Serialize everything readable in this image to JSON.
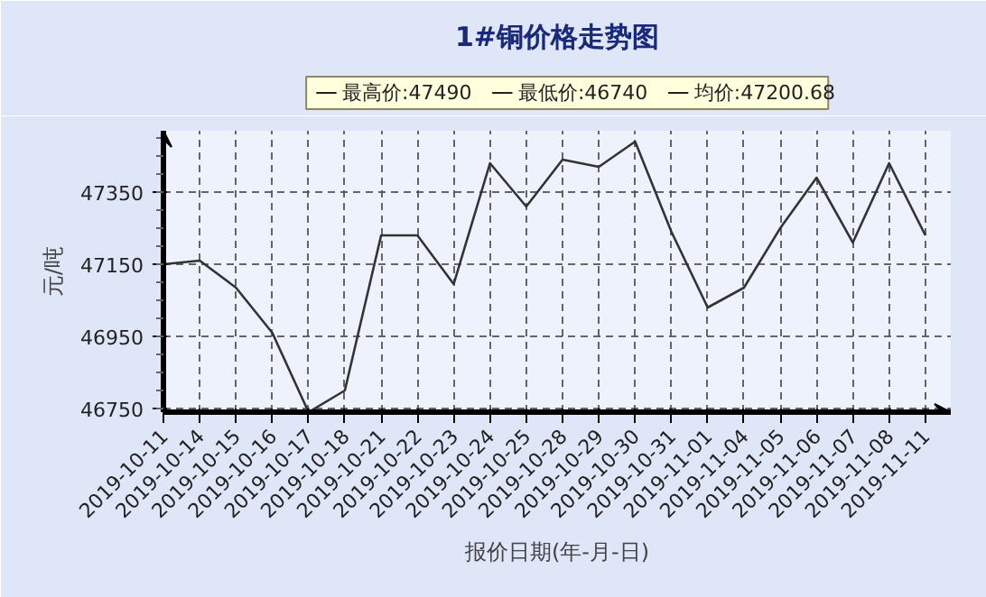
{
  "chart_data": {
    "type": "line",
    "title": "1#铜价格走势图",
    "xlabel": "报价日期(年-月-日)",
    "ylabel": "元/吨",
    "categories": [
      "2019-10-11",
      "2019-10-14",
      "2019-10-15",
      "2019-10-16",
      "2019-10-17",
      "2019-10-18",
      "2019-10-21",
      "2019-10-22",
      "2019-10-23",
      "2019-10-24",
      "2019-10-25",
      "2019-10-28",
      "2019-10-29",
      "2019-10-30",
      "2019-10-31",
      "2019-11-01",
      "2019-11-04",
      "2019-11-05",
      "2019-11-06",
      "2019-11-07",
      "2019-11-08",
      "2019-11-11"
    ],
    "series": [
      {
        "color": "#333333",
        "values": [
          47150,
          47160,
          47085,
          46960,
          46740,
          46800,
          47230,
          47230,
          47095,
          47430,
          47310,
          47440,
          47420,
          47490,
          47240,
          47030,
          47085,
          47250,
          47390,
          47210,
          47430,
          47230
        ]
      }
    ],
    "ylim": [
      46740,
      47520
    ],
    "yticks": [
      46750,
      46950,
      47150,
      47350
    ],
    "grid": true,
    "marker": "none",
    "annotations": [
      "最高价:47490",
      "最低价:46740",
      "均价:47200.68"
    ]
  }
}
